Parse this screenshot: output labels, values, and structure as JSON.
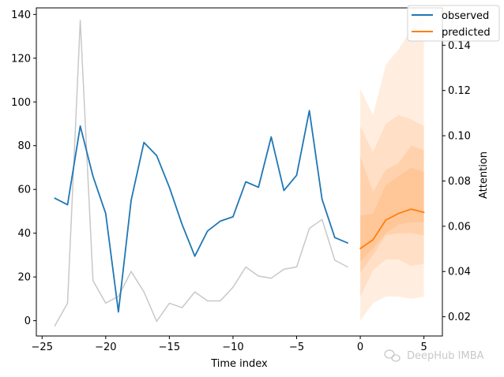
{
  "chart_data": {
    "type": "line",
    "title": "",
    "xlabel": "Time index",
    "ylabel": "",
    "y2label": "Attention",
    "xlim": [
      -25.45,
      6.45
    ],
    "ylim": [
      -7,
      143
    ],
    "y2lim": [
      0.0115,
      0.1565
    ],
    "xticks": [
      -25,
      -20,
      -15,
      -10,
      -5,
      0,
      5
    ],
    "xtick_labels": [
      "−25",
      "−20",
      "−15",
      "−10",
      "−5",
      "0",
      "5"
    ],
    "yticks": [
      0,
      20,
      40,
      60,
      80,
      100,
      120,
      140
    ],
    "y2ticks": [
      0.02,
      0.04,
      0.06,
      0.08,
      0.1,
      0.12,
      0.14
    ],
    "y2tick_labels": [
      "0.02",
      "0.04",
      "0.06",
      "0.08",
      "0.10",
      "0.12",
      "0.14"
    ],
    "series": [
      {
        "name": "observed",
        "color": "#1f77b4",
        "axis": "left",
        "x": [
          -24,
          -23,
          -22,
          -21,
          -20,
          -19,
          -18,
          -17,
          -16,
          -15,
          -14,
          -13,
          -12,
          -11,
          -10,
          -9,
          -8,
          -7,
          -6,
          -5,
          -4,
          -3,
          -2,
          -1
        ],
        "y": [
          56,
          53,
          89,
          66,
          49,
          4,
          55,
          81.5,
          75.5,
          61,
          44,
          29.5,
          41,
          45.5,
          47.5,
          63.5,
          61,
          84,
          59.5,
          66.5,
          96,
          55.5,
          38,
          35.5
        ]
      },
      {
        "name": "predicted",
        "color": "#ff7f0e",
        "axis": "left",
        "x": [
          0,
          1,
          2,
          3,
          4,
          5
        ],
        "y": [
          33,
          37,
          46,
          49,
          51,
          49.5
        ]
      },
      {
        "name": "",
        "color": "#c8c8c8",
        "axis": "right",
        "x": [
          -24,
          -23,
          -22,
          -21,
          -20,
          -19,
          -18,
          -17,
          -16,
          -15,
          -14,
          -13,
          -12,
          -11,
          -10,
          -9,
          -8,
          -7,
          -6,
          -5,
          -4,
          -3,
          -2,
          -1
        ],
        "y": [
          0.016,
          0.026,
          0.151,
          0.036,
          0.026,
          0.029,
          0.04,
          0.031,
          0.018,
          0.026,
          0.024,
          0.031,
          0.027,
          0.027,
          0.033,
          0.042,
          0.038,
          0.037,
          0.041,
          0.042,
          0.059,
          0.063,
          0.045,
          0.042
        ]
      }
    ],
    "prediction_bands": {
      "color": "#ff7f0e",
      "x": [
        0,
        1,
        2,
        3,
        4,
        5
      ],
      "bands": [
        {
          "opacity": 0.13,
          "low": [
            0,
            8,
            11,
            11,
            10,
            11
          ],
          "high": [
            106,
            94,
            117,
            124,
            133,
            141
          ]
        },
        {
          "opacity": 0.13,
          "low": [
            11,
            23,
            28,
            28,
            25,
            26
          ],
          "high": [
            89,
            77,
            90,
            94,
            92,
            89
          ]
        },
        {
          "opacity": 0.13,
          "low": [
            22,
            30,
            39,
            40,
            40,
            39
          ],
          "high": [
            75,
            59,
            69,
            72,
            80,
            78
          ]
        },
        {
          "opacity": 0.13,
          "low": [
            27,
            33,
            40,
            44,
            45,
            45
          ],
          "high": [
            48,
            49,
            62,
            66,
            70,
            68
          ]
        }
      ]
    },
    "legend": {
      "placement": "top-right",
      "entries": [
        {
          "label": "observed",
          "color": "#1f77b4"
        },
        {
          "label": "predicted",
          "color": "#ff7f0e"
        }
      ]
    },
    "grid": false
  },
  "watermark": {
    "text": "DeepHub IMBA",
    "icon": "wechat-icon"
  }
}
